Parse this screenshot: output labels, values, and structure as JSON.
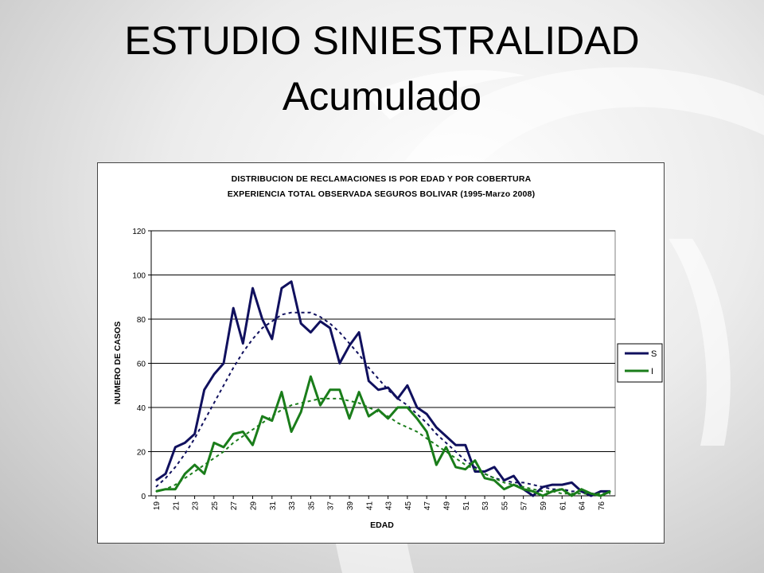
{
  "slide": {
    "title": "ESTUDIO SINIESTRALIDAD",
    "subtitle": "Acumulado"
  },
  "colors": {
    "series_s": "#10105e",
    "series_i": "#1a7d1a",
    "grid": "#000000"
  },
  "chart_data": {
    "type": "line",
    "title": "DISTRIBUCION DE RECLAMACIONES IS POR EDAD Y POR COBERTURA",
    "subtitle": "EXPERIENCIA TOTAL OBSERVADA SEGUROS BOLIVAR (1995-Marzo 2008)",
    "xlabel": "EDAD",
    "ylabel": "NUMERO DE CASOS",
    "ylim": [
      0,
      120
    ],
    "yticks": [
      0,
      20,
      40,
      60,
      80,
      100,
      120
    ],
    "grid": true,
    "legend_position": "right",
    "x": [
      19,
      20,
      21,
      22,
      23,
      24,
      25,
      26,
      27,
      28,
      29,
      30,
      31,
      32,
      33,
      34,
      35,
      36,
      37,
      38,
      39,
      40,
      41,
      42,
      43,
      44,
      45,
      46,
      47,
      48,
      49,
      50,
      51,
      52,
      53,
      54,
      55,
      56,
      57,
      58,
      59,
      60,
      61,
      62,
      63,
      64,
      65,
      66
    ],
    "x_tick_labels": [
      "19",
      "21",
      "23",
      "25",
      "27",
      "29",
      "31",
      "33",
      "35",
      "37",
      "39",
      "41",
      "43",
      "45",
      "47",
      "49",
      "51",
      "53",
      "55",
      "57",
      "59",
      "61",
      "64",
      "76"
    ],
    "series": [
      {
        "name": "S",
        "values": [
          7,
          10,
          22,
          24,
          28,
          48,
          55,
          60,
          85,
          69,
          94,
          80,
          71,
          94,
          97,
          78,
          74,
          79,
          76,
          60,
          68,
          74,
          52,
          48,
          49,
          44,
          50,
          40,
          37,
          31,
          27,
          23,
          23,
          11,
          11,
          13,
          7,
          9,
          3,
          0,
          4,
          5,
          5,
          6,
          2,
          0,
          2,
          2
        ],
        "trend": [
          4,
          8,
          13,
          19,
          26,
          34,
          42,
          50,
          58,
          65,
          71,
          76,
          79,
          82,
          83,
          83,
          83,
          81,
          78,
          74,
          69,
          64,
          58,
          53,
          48,
          44,
          41,
          37,
          33,
          28,
          24,
          20,
          16,
          13,
          10,
          8,
          7,
          6,
          6,
          5,
          4,
          3,
          3,
          2,
          2,
          1,
          1,
          1
        ]
      },
      {
        "name": "I",
        "values": [
          2,
          3,
          3,
          10,
          14,
          10,
          24,
          22,
          28,
          29,
          23,
          36,
          34,
          47,
          29,
          38,
          54,
          41,
          48,
          48,
          35,
          47,
          36,
          39,
          35,
          40,
          40,
          35,
          29,
          14,
          22,
          13,
          12,
          16,
          8,
          7,
          3,
          5,
          3,
          2,
          0,
          2,
          3,
          0,
          3,
          1,
          0,
          2
        ],
        "trend": [
          2,
          3,
          5,
          8,
          11,
          14,
          17,
          20,
          24,
          27,
          30,
          33,
          36,
          39,
          41,
          42,
          43,
          44,
          44,
          44,
          43,
          42,
          40,
          38,
          36,
          33,
          31,
          29,
          26,
          23,
          20,
          17,
          14,
          12,
          10,
          8,
          6,
          5,
          4,
          3,
          2,
          2,
          1,
          1,
          1,
          1,
          1,
          1
        ]
      }
    ]
  }
}
